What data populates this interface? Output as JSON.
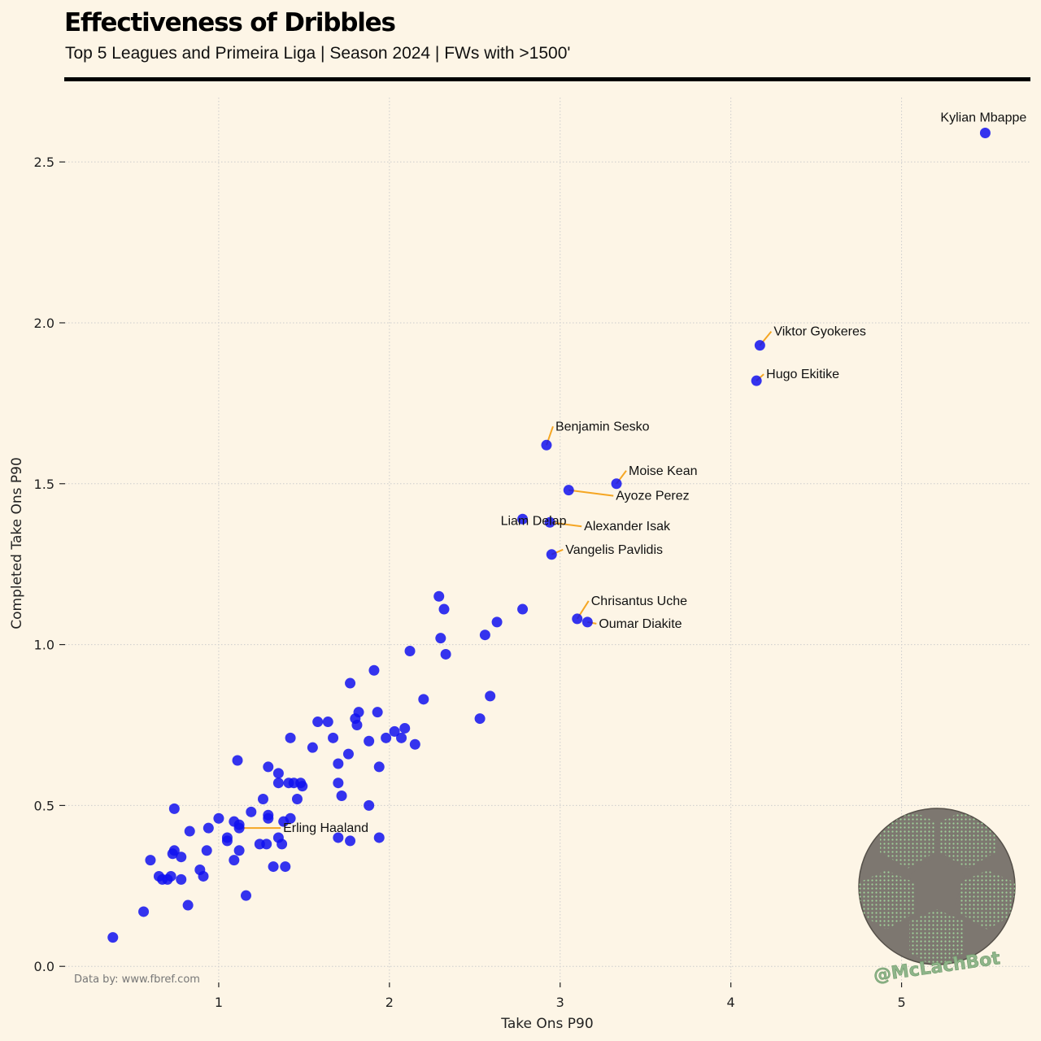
{
  "header": {
    "title": "Effectiveness of Dribbles",
    "subtitle": "Top 5 Leagues and Primeira Liga | Season 2024 | FWs with >1500'"
  },
  "footer": {
    "source": "Data by: www.fbref.com",
    "brand": "@McLachBot"
  },
  "colors": {
    "point": "#1010ee",
    "leader": "#f5a623",
    "grid": "#cccccc",
    "background": "#fdf5e6"
  },
  "chart_data": {
    "type": "scatter",
    "xlabel": "Take Ons P90",
    "ylabel": "Completed Take Ons P90",
    "xlim": [
      0.1,
      5.75
    ],
    "ylim": [
      -0.05,
      2.7
    ],
    "x_ticks": [
      1,
      2,
      3,
      4,
      5
    ],
    "y_ticks": [
      0.0,
      0.5,
      1.0,
      1.5,
      2.0,
      2.5
    ],
    "x_tick_labels": [
      "1",
      "2",
      "3",
      "4",
      "5"
    ],
    "y_tick_labels": [
      "0.0",
      "0.5",
      "1.0",
      "1.5",
      "2.0",
      "2.5"
    ],
    "grid": true,
    "labeled_points": [
      {
        "name": "Kylian Mbappe",
        "x": 5.49,
        "y": 2.59
      },
      {
        "name": "Viktor Gyokeres",
        "x": 4.17,
        "y": 1.93
      },
      {
        "name": "Hugo Ekitike",
        "x": 4.15,
        "y": 1.82
      },
      {
        "name": "Benjamin Sesko",
        "x": 2.92,
        "y": 1.62
      },
      {
        "name": "Moise Kean",
        "x": 3.33,
        "y": 1.5
      },
      {
        "name": "Ayoze Perez",
        "x": 3.05,
        "y": 1.48
      },
      {
        "name": "Liam Delap",
        "x": 2.78,
        "y": 1.39
      },
      {
        "name": "Alexander Isak",
        "x": 2.94,
        "y": 1.38
      },
      {
        "name": "Vangelis Pavlidis",
        "x": 2.95,
        "y": 1.28
      },
      {
        "name": "Chrisantus Uche",
        "x": 3.1,
        "y": 1.08
      },
      {
        "name": "Oumar Diakite",
        "x": 3.16,
        "y": 1.07
      },
      {
        "name": "Erling Haaland",
        "x": 1.12,
        "y": 0.43
      }
    ],
    "points": [
      [
        0.38,
        0.09
      ],
      [
        0.56,
        0.17
      ],
      [
        0.6,
        0.33
      ],
      [
        0.65,
        0.28
      ],
      [
        0.67,
        0.27
      ],
      [
        0.7,
        0.27
      ],
      [
        0.72,
        0.28
      ],
      [
        0.73,
        0.35
      ],
      [
        0.74,
        0.36
      ],
      [
        0.74,
        0.49
      ],
      [
        0.78,
        0.34
      ],
      [
        0.78,
        0.27
      ],
      [
        0.82,
        0.19
      ],
      [
        0.83,
        0.42
      ],
      [
        0.89,
        0.3
      ],
      [
        0.91,
        0.28
      ],
      [
        0.93,
        0.36
      ],
      [
        0.94,
        0.43
      ],
      [
        1.0,
        0.46
      ],
      [
        1.05,
        0.39
      ],
      [
        1.05,
        0.4
      ],
      [
        1.09,
        0.33
      ],
      [
        1.09,
        0.45
      ],
      [
        1.11,
        0.64
      ],
      [
        1.12,
        0.36
      ],
      [
        1.12,
        0.44
      ],
      [
        1.16,
        0.22
      ],
      [
        1.19,
        0.48
      ],
      [
        1.24,
        0.38
      ],
      [
        1.26,
        0.52
      ],
      [
        1.28,
        0.38
      ],
      [
        1.29,
        0.62
      ],
      [
        1.29,
        0.46
      ],
      [
        1.29,
        0.47
      ],
      [
        1.32,
        0.31
      ],
      [
        1.35,
        0.6
      ],
      [
        1.35,
        0.4
      ],
      [
        1.35,
        0.57
      ],
      [
        1.37,
        0.38
      ],
      [
        1.38,
        0.45
      ],
      [
        1.39,
        0.31
      ],
      [
        1.41,
        0.57
      ],
      [
        1.42,
        0.71
      ],
      [
        1.42,
        0.46
      ],
      [
        1.44,
        0.57
      ],
      [
        1.46,
        0.52
      ],
      [
        1.48,
        0.57
      ],
      [
        1.49,
        0.56
      ],
      [
        1.55,
        0.68
      ],
      [
        1.58,
        0.76
      ],
      [
        1.64,
        0.76
      ],
      [
        1.67,
        0.71
      ],
      [
        1.7,
        0.63
      ],
      [
        1.7,
        0.57
      ],
      [
        1.72,
        0.53
      ],
      [
        1.7,
        0.4
      ],
      [
        1.76,
        0.66
      ],
      [
        1.77,
        0.88
      ],
      [
        1.77,
        0.39
      ],
      [
        1.8,
        0.77
      ],
      [
        1.81,
        0.75
      ],
      [
        1.82,
        0.79
      ],
      [
        1.88,
        0.5
      ],
      [
        1.88,
        0.7
      ],
      [
        1.91,
        0.92
      ],
      [
        1.93,
        0.79
      ],
      [
        1.94,
        0.4
      ],
      [
        1.94,
        0.62
      ],
      [
        1.98,
        0.71
      ],
      [
        2.03,
        0.73
      ],
      [
        2.07,
        0.71
      ],
      [
        2.09,
        0.74
      ],
      [
        2.12,
        0.98
      ],
      [
        2.15,
        0.69
      ],
      [
        2.2,
        0.83
      ],
      [
        2.29,
        1.15
      ],
      [
        2.3,
        1.02
      ],
      [
        2.32,
        1.11
      ],
      [
        2.33,
        0.97
      ],
      [
        2.53,
        0.77
      ],
      [
        2.56,
        1.03
      ],
      [
        2.59,
        0.84
      ],
      [
        2.63,
        1.07
      ],
      [
        2.78,
        1.11
      ]
    ]
  }
}
